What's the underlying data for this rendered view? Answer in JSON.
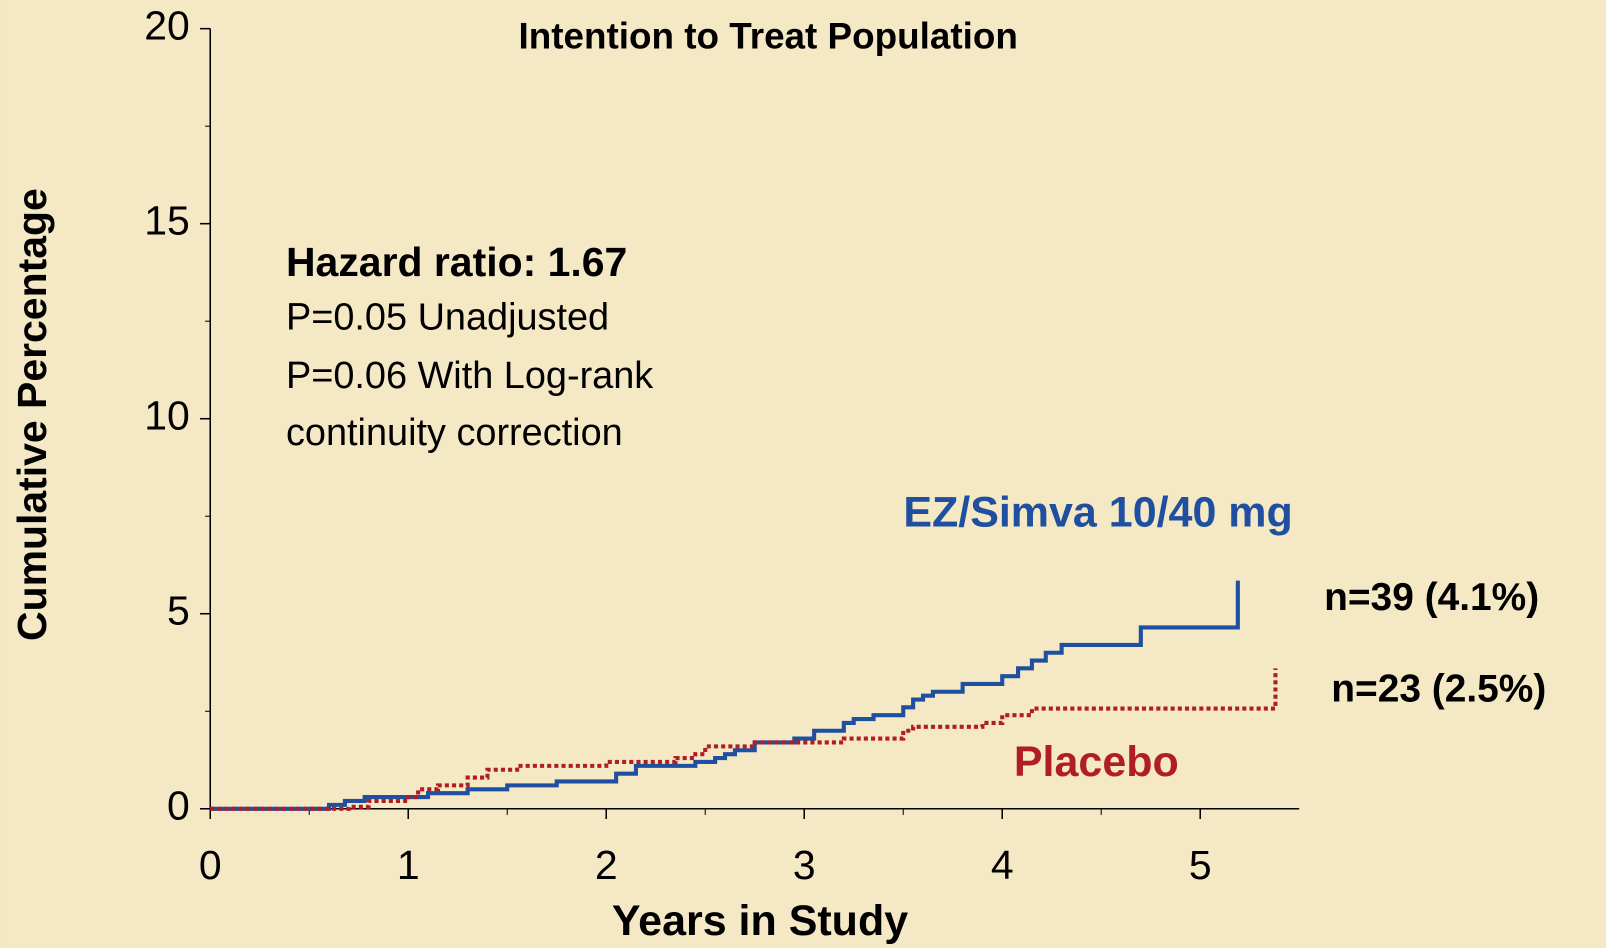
{
  "chart_data": {
    "type": "step",
    "title": "Intention to Treat Population",
    "x_label": "Years in Study",
    "y_label": "Cumulative Percentage",
    "xlim": [
      0,
      5.5
    ],
    "xticks": [
      0,
      1,
      2,
      3,
      4,
      5
    ],
    "xminor": [
      0.5,
      1.5,
      2.5,
      3.5,
      4.5
    ],
    "ylim": [
      0,
      20
    ],
    "yticks": [
      0,
      5,
      10,
      15,
      20
    ],
    "yminor": [
      2.5,
      7.5,
      12.5,
      17.5
    ],
    "annotations": [
      "Hazard ratio:  1.67",
      "P=0.05 Unadjusted",
      "P=0.06 With Log-rank",
      "continuity correction",
      "n=39 (4.1%)",
      "n=23 (2.5%)"
    ],
    "series": [
      {
        "name": "EZ/Simva 10/40 mg",
        "color": "#1f4fa0",
        "dash": false,
        "x": [
          0,
          0.6,
          0.68,
          0.78,
          1.1,
          1.3,
          1.5,
          1.75,
          2.05,
          2.15,
          2.45,
          2.55,
          2.6,
          2.65,
          2.75,
          2.95,
          3.05,
          3.2,
          3.25,
          3.35,
          3.5,
          3.55,
          3.6,
          3.65,
          3.8,
          4.0,
          4.08,
          4.15,
          4.22,
          4.3,
          4.7,
          5.19,
          5.19
        ],
        "values": [
          0,
          0.1,
          0.2,
          0.3,
          0.4,
          0.5,
          0.6,
          0.7,
          0.9,
          1.1,
          1.2,
          1.3,
          1.4,
          1.5,
          1.7,
          1.8,
          2.0,
          2.2,
          2.3,
          2.4,
          2.6,
          2.8,
          2.9,
          3.0,
          3.2,
          3.4,
          3.6,
          3.8,
          4.0,
          4.2,
          4.65,
          4.65,
          5.85
        ]
      },
      {
        "name": "Placebo",
        "color": "#b01e23",
        "dash": true,
        "x": [
          0,
          0.7,
          0.8,
          1.0,
          1.05,
          1.15,
          1.3,
          1.4,
          1.55,
          2.0,
          2.35,
          2.45,
          2.5,
          2.75,
          3.2,
          3.5,
          3.55,
          3.9,
          4.0,
          4.15,
          5.38,
          5.38
        ],
        "values": [
          0,
          0.05,
          0.2,
          0.3,
          0.5,
          0.6,
          0.8,
          1.0,
          1.1,
          1.2,
          1.3,
          1.4,
          1.6,
          1.7,
          1.8,
          2.0,
          2.1,
          2.2,
          2.4,
          2.57,
          2.57,
          3.6
        ]
      }
    ]
  }
}
